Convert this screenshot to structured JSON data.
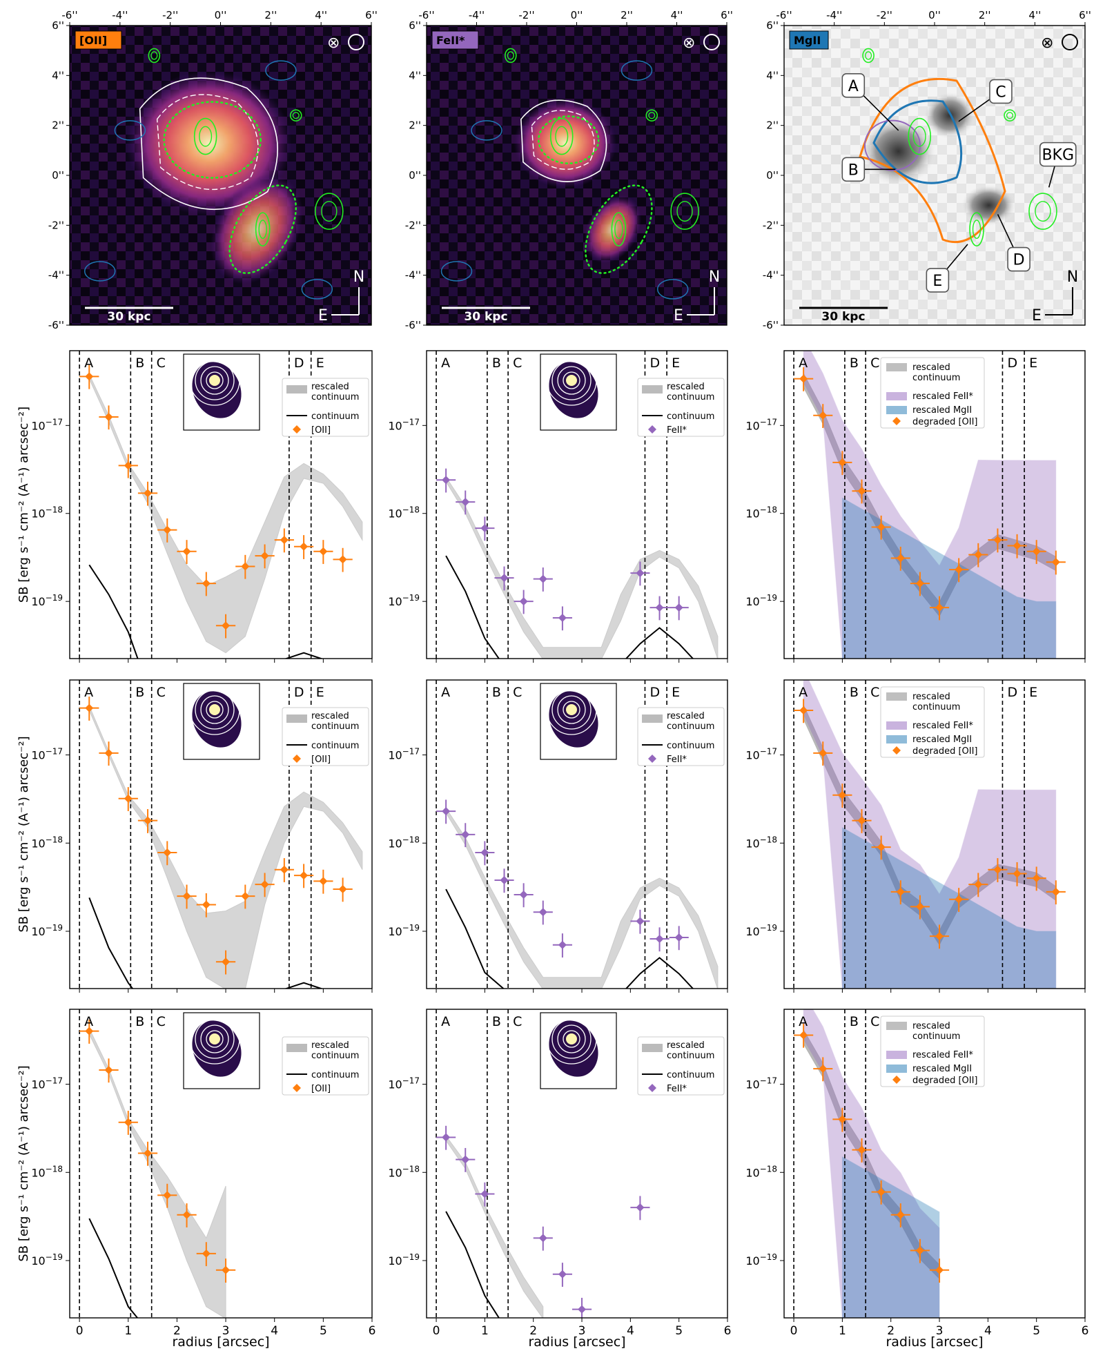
{
  "colors": {
    "oii": "#ff7f0e",
    "feii": "#9467bd",
    "mgii": "#1f77b4",
    "contour_green": "#22ee22",
    "continuum": "#000000",
    "rescaled_continuum_fill": "#bbbbbb"
  },
  "image_panels": [
    {
      "label": "[OII]",
      "label_color": "#ff7f0e",
      "colormap": "magma",
      "scalebar": "30 kpc",
      "north": "N",
      "east": "E",
      "beam_symbol": "⊗"
    },
    {
      "label": "FeII*",
      "label_color": "#9467bd",
      "colormap": "magma",
      "scalebar": "30 kpc",
      "north": "N",
      "east": "E",
      "beam_symbol": "⊗"
    },
    {
      "label": "MgII",
      "label_color": "#1f77b4",
      "colormap": "greys",
      "scalebar": "30 kpc",
      "north": "N",
      "east": "E",
      "beam_symbol": "⊗",
      "annotations": [
        "A",
        "B",
        "C",
        "D",
        "E",
        "BKG"
      ]
    }
  ],
  "image_axes": {
    "ticks": [
      "-6''",
      "-4''",
      "-2''",
      "0''",
      "2''",
      "4''",
      "6''"
    ],
    "yticks": [
      "6''",
      "4''",
      "2''",
      "0''",
      "-2''",
      "-4''",
      "-6''"
    ]
  },
  "profile_axes": {
    "xlabel": "radius [arcsec]",
    "ylabel": "SB [erg s⁻¹ cm⁻² (A⁻¹) arcsec⁻²]",
    "xlim": [
      -0.2,
      6
    ],
    "ylim_log10": [
      -19.65,
      -16.15
    ],
    "xticks": [
      "0",
      "1",
      "2",
      "3",
      "4",
      "5",
      "6"
    ],
    "yticks": [
      {
        "exp": -17,
        "label": "10",
        "sup": "−17"
      },
      {
        "exp": -18,
        "label": "10",
        "sup": "−18"
      },
      {
        "exp": -19,
        "label": "10",
        "sup": "−19"
      }
    ]
  },
  "region_lines": [
    {
      "label": "A",
      "x": 0.0
    },
    {
      "label": "B",
      "x": 1.05
    },
    {
      "label": "C",
      "x": 1.48
    },
    {
      "label": "D",
      "x": 4.3
    },
    {
      "label": "E",
      "x": 4.75
    }
  ],
  "legend_labels": {
    "rescaled_continuum": "rescaled\ncontinuum",
    "continuum": "continuum",
    "oii": "[OII]",
    "feii": "FeII*",
    "rescaled_feii": "rescaled FeII*",
    "rescaled_mgii": "rescaled MgII",
    "degraded_oii": "degraded [OII]"
  },
  "chart_data": [
    {
      "type": "line",
      "row": 1,
      "col": 1,
      "line": "oii",
      "regions": [
        "A",
        "B",
        "C",
        "D",
        "E"
      ],
      "points": {
        "x": [
          0.2,
          0.6,
          1.0,
          1.4,
          1.8,
          2.2,
          2.6,
          3.0,
          3.4,
          3.8,
          4.2,
          4.6,
          5.0,
          5.4
        ],
        "y": [
          3.6e-17,
          1.25e-17,
          3.5e-18,
          1.7e-18,
          6.5e-19,
          3.7e-19,
          1.6e-19,
          5.3e-20,
          2.5e-19,
          3.3e-19,
          5e-19,
          4.2e-19,
          3.7e-19,
          3e-19
        ]
      },
      "continuum": {
        "x": [
          0.2,
          0.6,
          1.0,
          1.2
        ],
        "y": [
          2.6e-19,
          1.2e-19,
          4.5e-20,
          2.2e-20
        ]
      },
      "continuum2": {
        "x": [
          4.2,
          4.6,
          5.0
        ],
        "y": [
          2.2e-20,
          2.6e-20,
          2.2e-20
        ]
      },
      "rescaled_continuum": {
        "x": [
          0.2,
          0.6,
          1.0,
          1.4,
          1.8,
          2.2,
          2.6,
          3.0,
          3.4,
          3.8,
          4.2,
          4.6,
          5.0,
          5.4,
          5.8
        ],
        "lo": [
          3.4e-17,
          1.1e-17,
          3.2e-18,
          1.3e-18,
          3.5e-19,
          1e-19,
          3.5e-20,
          2.6e-20,
          4e-20,
          1.8e-19,
          1e-18,
          2.5e-18,
          2.2e-18,
          1.2e-18,
          5e-19
        ],
        "hi": [
          3.8e-17,
          1.3e-17,
          3.7e-18,
          1.7e-18,
          6.5e-19,
          2.6e-19,
          1.5e-19,
          1.9e-19,
          2.5e-19,
          8e-19,
          2.6e-18,
          3.7e-18,
          2.8e-18,
          1.7e-18,
          8e-19
        ]
      }
    },
    {
      "type": "line",
      "row": 1,
      "col": 2,
      "line": "feii",
      "regions": [
        "A",
        "B",
        "C",
        "D",
        "E"
      ],
      "points": {
        "x": [
          0.2,
          0.6,
          1.0,
          1.4,
          1.8,
          2.2,
          2.6,
          4.2,
          4.6,
          5.0
        ],
        "y": [
          2.4e-18,
          1.35e-18,
          6.8e-19,
          1.85e-19,
          1e-19,
          1.8e-19,
          6.5e-20,
          2.1e-19,
          8.5e-20,
          8.5e-20
        ]
      },
      "continuum": {
        "x": [
          0.2,
          0.6,
          1.0,
          1.3
        ],
        "y": [
          3.3e-19,
          1.3e-19,
          3.8e-20,
          2.2e-20
        ]
      },
      "continuum2": {
        "x": [
          3.9,
          4.2,
          4.6,
          5.0,
          5.3
        ],
        "y": [
          2.2e-20,
          3.3e-20,
          5e-20,
          3.3e-20,
          2.2e-20
        ]
      },
      "rescaled_continuum": {
        "x": [
          0.2,
          0.6,
          1.0,
          1.4,
          1.8,
          2.2,
          3.4,
          3.8,
          4.2,
          4.6,
          5.0,
          5.4,
          5.8
        ],
        "lo": [
          2.3e-18,
          1e-18,
          3.4e-19,
          1.2e-19,
          4.5e-20,
          2.2e-20,
          2.2e-20,
          6e-20,
          2.2e-19,
          3.2e-19,
          2.4e-19,
          1e-19,
          2.2e-20
        ],
        "hi": [
          2.6e-18,
          1.2e-18,
          4.2e-19,
          1.6e-19,
          6.5e-20,
          3e-20,
          3e-20,
          1.2e-19,
          3e-19,
          3.8e-19,
          3e-19,
          1.5e-19,
          4e-20
        ]
      }
    },
    {
      "type": "area",
      "row": 1,
      "col": 3,
      "line": "mgii",
      "regions": [
        "A",
        "B",
        "C",
        "D",
        "E"
      ],
      "points": {
        "x": [
          0.2,
          0.6,
          1.0,
          1.4,
          1.8,
          2.2,
          2.6,
          3.0,
          3.4,
          3.8,
          4.2,
          4.6,
          5.0,
          5.4
        ],
        "y": [
          3.4e-17,
          1.3e-17,
          3.8e-18,
          1.8e-18,
          7e-19,
          3.1e-19,
          1.6e-19,
          8.5e-20,
          2.3e-19,
          3.4e-19,
          5e-19,
          4.3e-19,
          3.7e-19,
          2.8e-19
        ]
      }
    },
    {
      "type": "line",
      "row": 2,
      "col": 1,
      "line": "oii",
      "regions": [
        "A",
        "B",
        "C",
        "D",
        "E"
      ],
      "points": {
        "x": [
          0.2,
          0.6,
          1.0,
          1.4,
          1.8,
          2.2,
          2.6,
          3.0,
          3.4,
          3.8,
          4.2,
          4.6,
          5.0,
          5.4
        ],
        "y": [
          3.4e-17,
          1.05e-17,
          3.2e-18,
          1.8e-18,
          7.8e-19,
          2.5e-19,
          2e-19,
          4.5e-20,
          2.5e-19,
          3.4e-19,
          5e-19,
          4.3e-19,
          3.7e-19,
          3e-19
        ]
      },
      "continuum": {
        "x": [
          0.2,
          0.6,
          1.0,
          1.1
        ],
        "y": [
          2.4e-19,
          6.5e-20,
          2.6e-20,
          2.2e-20
        ]
      },
      "continuum2": {
        "x": [
          4.2,
          4.6,
          5.0
        ],
        "y": [
          2.2e-20,
          2.6e-20,
          2.2e-20
        ]
      },
      "rescaled_continuum": {
        "x": [
          0.2,
          0.6,
          1.0,
          1.4,
          1.8,
          2.2,
          2.6,
          3.0,
          3.4,
          3.8,
          4.2,
          4.6,
          5.0,
          5.4,
          5.8
        ],
        "lo": [
          3.2e-17,
          9.8e-18,
          3e-18,
          1.5e-18,
          4e-19,
          1e-19,
          3e-20,
          2.2e-20,
          2.2e-20,
          2e-19,
          1e-18,
          2.6e-18,
          2.3e-18,
          1.3e-18,
          5e-19
        ],
        "hi": [
          3.6e-17,
          1.1e-17,
          3.5e-18,
          1.9e-18,
          7.5e-19,
          2.8e-19,
          1.6e-19,
          1.7e-19,
          2.2e-19,
          8e-19,
          2.6e-18,
          3.8e-18,
          2.9e-18,
          1.7e-18,
          8e-19
        ]
      }
    },
    {
      "type": "line",
      "row": 2,
      "col": 2,
      "line": "feii",
      "regions": [
        "A",
        "B",
        "C",
        "D",
        "E"
      ],
      "points": {
        "x": [
          0.2,
          0.6,
          1.0,
          1.4,
          1.8,
          2.2,
          2.6,
          4.2,
          4.6,
          5.0
        ],
        "y": [
          2.3e-18,
          1.25e-18,
          7.8e-19,
          3.8e-19,
          2.6e-19,
          1.65e-19,
          7e-20,
          1.3e-19,
          8.2e-20,
          8.5e-20
        ]
      },
      "continuum": {
        "x": [
          0.2,
          0.6,
          1.0,
          1.4
        ],
        "y": [
          3e-19,
          1.1e-19,
          3.4e-20,
          2.2e-20
        ]
      },
      "continuum2": {
        "x": [
          3.9,
          4.2,
          4.6,
          5.0,
          5.3
        ],
        "y": [
          2.2e-20,
          3.3e-20,
          5e-20,
          3.3e-20,
          2.2e-20
        ]
      },
      "rescaled_continuum": {
        "x": [
          0.2,
          0.6,
          1.0,
          1.4,
          1.8,
          2.2,
          3.4,
          3.8,
          4.2,
          4.6,
          5.0,
          5.4,
          5.8
        ],
        "lo": [
          2.2e-18,
          9.5e-19,
          3.3e-19,
          1.2e-19,
          4.5e-20,
          2.2e-20,
          2.2e-20,
          6.5e-20,
          2.3e-19,
          3.3e-19,
          2.5e-19,
          1e-19,
          2.2e-20
        ],
        "hi": [
          2.5e-18,
          1.15e-18,
          4.1e-19,
          1.6e-19,
          6.5e-20,
          3e-20,
          3e-20,
          1.3e-19,
          3.1e-19,
          4e-19,
          3.1e-19,
          1.5e-19,
          4e-20
        ]
      }
    },
    {
      "type": "area",
      "row": 2,
      "col": 3,
      "line": "mgii",
      "regions": [
        "A",
        "B",
        "C",
        "D",
        "E"
      ],
      "points": {
        "x": [
          0.2,
          0.6,
          1.0,
          1.4,
          1.8,
          2.2,
          2.6,
          3.0,
          3.4,
          3.8,
          4.2,
          4.6,
          5.0,
          5.4
        ],
        "y": [
          3.2e-17,
          1.05e-17,
          3.5e-18,
          1.8e-18,
          9e-19,
          2.8e-19,
          1.9e-19,
          8.8e-20,
          2.3e-19,
          3.4e-19,
          5e-19,
          4.5e-19,
          4e-19,
          2.8e-19
        ]
      }
    },
    {
      "type": "line",
      "row": 3,
      "col": 1,
      "line": "oii",
      "regions": [
        "A",
        "B",
        "C"
      ],
      "points": {
        "x": [
          0.2,
          0.6,
          1.0,
          1.4,
          1.8,
          2.2,
          2.6,
          3.0
        ],
        "y": [
          4e-17,
          1.45e-17,
          3.7e-18,
          1.65e-18,
          5.5e-19,
          3.3e-19,
          1.2e-19,
          7.8e-20
        ]
      },
      "continuum": {
        "x": [
          0.2,
          0.6,
          1.0,
          1.2
        ],
        "y": [
          3e-19,
          1.05e-19,
          3e-20,
          2.2e-20
        ]
      },
      "rescaled_continuum": {
        "x": [
          0.2,
          0.6,
          1.0,
          1.4,
          1.8,
          2.2,
          2.6,
          3.0
        ],
        "lo": [
          3.7e-17,
          1.3e-17,
          3.4e-18,
          1.3e-18,
          4e-19,
          1e-19,
          3e-20,
          2.2e-20
        ],
        "hi": [
          4.3e-17,
          1.5e-17,
          4e-18,
          1.8e-18,
          9e-19,
          4e-19,
          1.8e-19,
          7e-19
        ]
      }
    },
    {
      "type": "line",
      "row": 3,
      "col": 2,
      "line": "feii",
      "regions": [
        "A",
        "B",
        "C"
      ],
      "points": {
        "x": [
          0.2,
          0.6,
          1.0,
          2.2,
          2.6,
          3.0,
          4.2
        ],
        "y": [
          2.5e-18,
          1.4e-18,
          5.7e-19,
          1.8e-19,
          7e-20,
          2.8e-20,
          4e-19
        ]
      },
      "continuum": {
        "x": [
          0.2,
          0.6,
          1.0,
          1.3
        ],
        "y": [
          3.6e-19,
          1.4e-19,
          4e-20,
          2.2e-20
        ]
      },
      "rescaled_continuum": {
        "x": [
          0.2,
          0.6,
          1.0,
          1.4,
          1.8,
          2.2
        ],
        "lo": [
          2.3e-18,
          1.1e-18,
          3.5e-19,
          1.2e-19,
          4.5e-20,
          2.2e-20
        ],
        "hi": [
          2.6e-18,
          1.3e-18,
          4.2e-19,
          1.6e-19,
          6.5e-20,
          3e-20
        ]
      }
    },
    {
      "type": "area",
      "row": 3,
      "col": 3,
      "line": "mgii",
      "regions": [
        "A",
        "B",
        "C"
      ],
      "points": {
        "x": [
          0.2,
          0.6,
          1.0,
          1.4,
          1.8,
          2.2,
          2.6,
          3.0
        ],
        "y": [
          3.6e-17,
          1.5e-17,
          4e-18,
          1.8e-18,
          6e-19,
          3.3e-19,
          1.3e-19,
          7.8e-20
        ]
      }
    }
  ]
}
